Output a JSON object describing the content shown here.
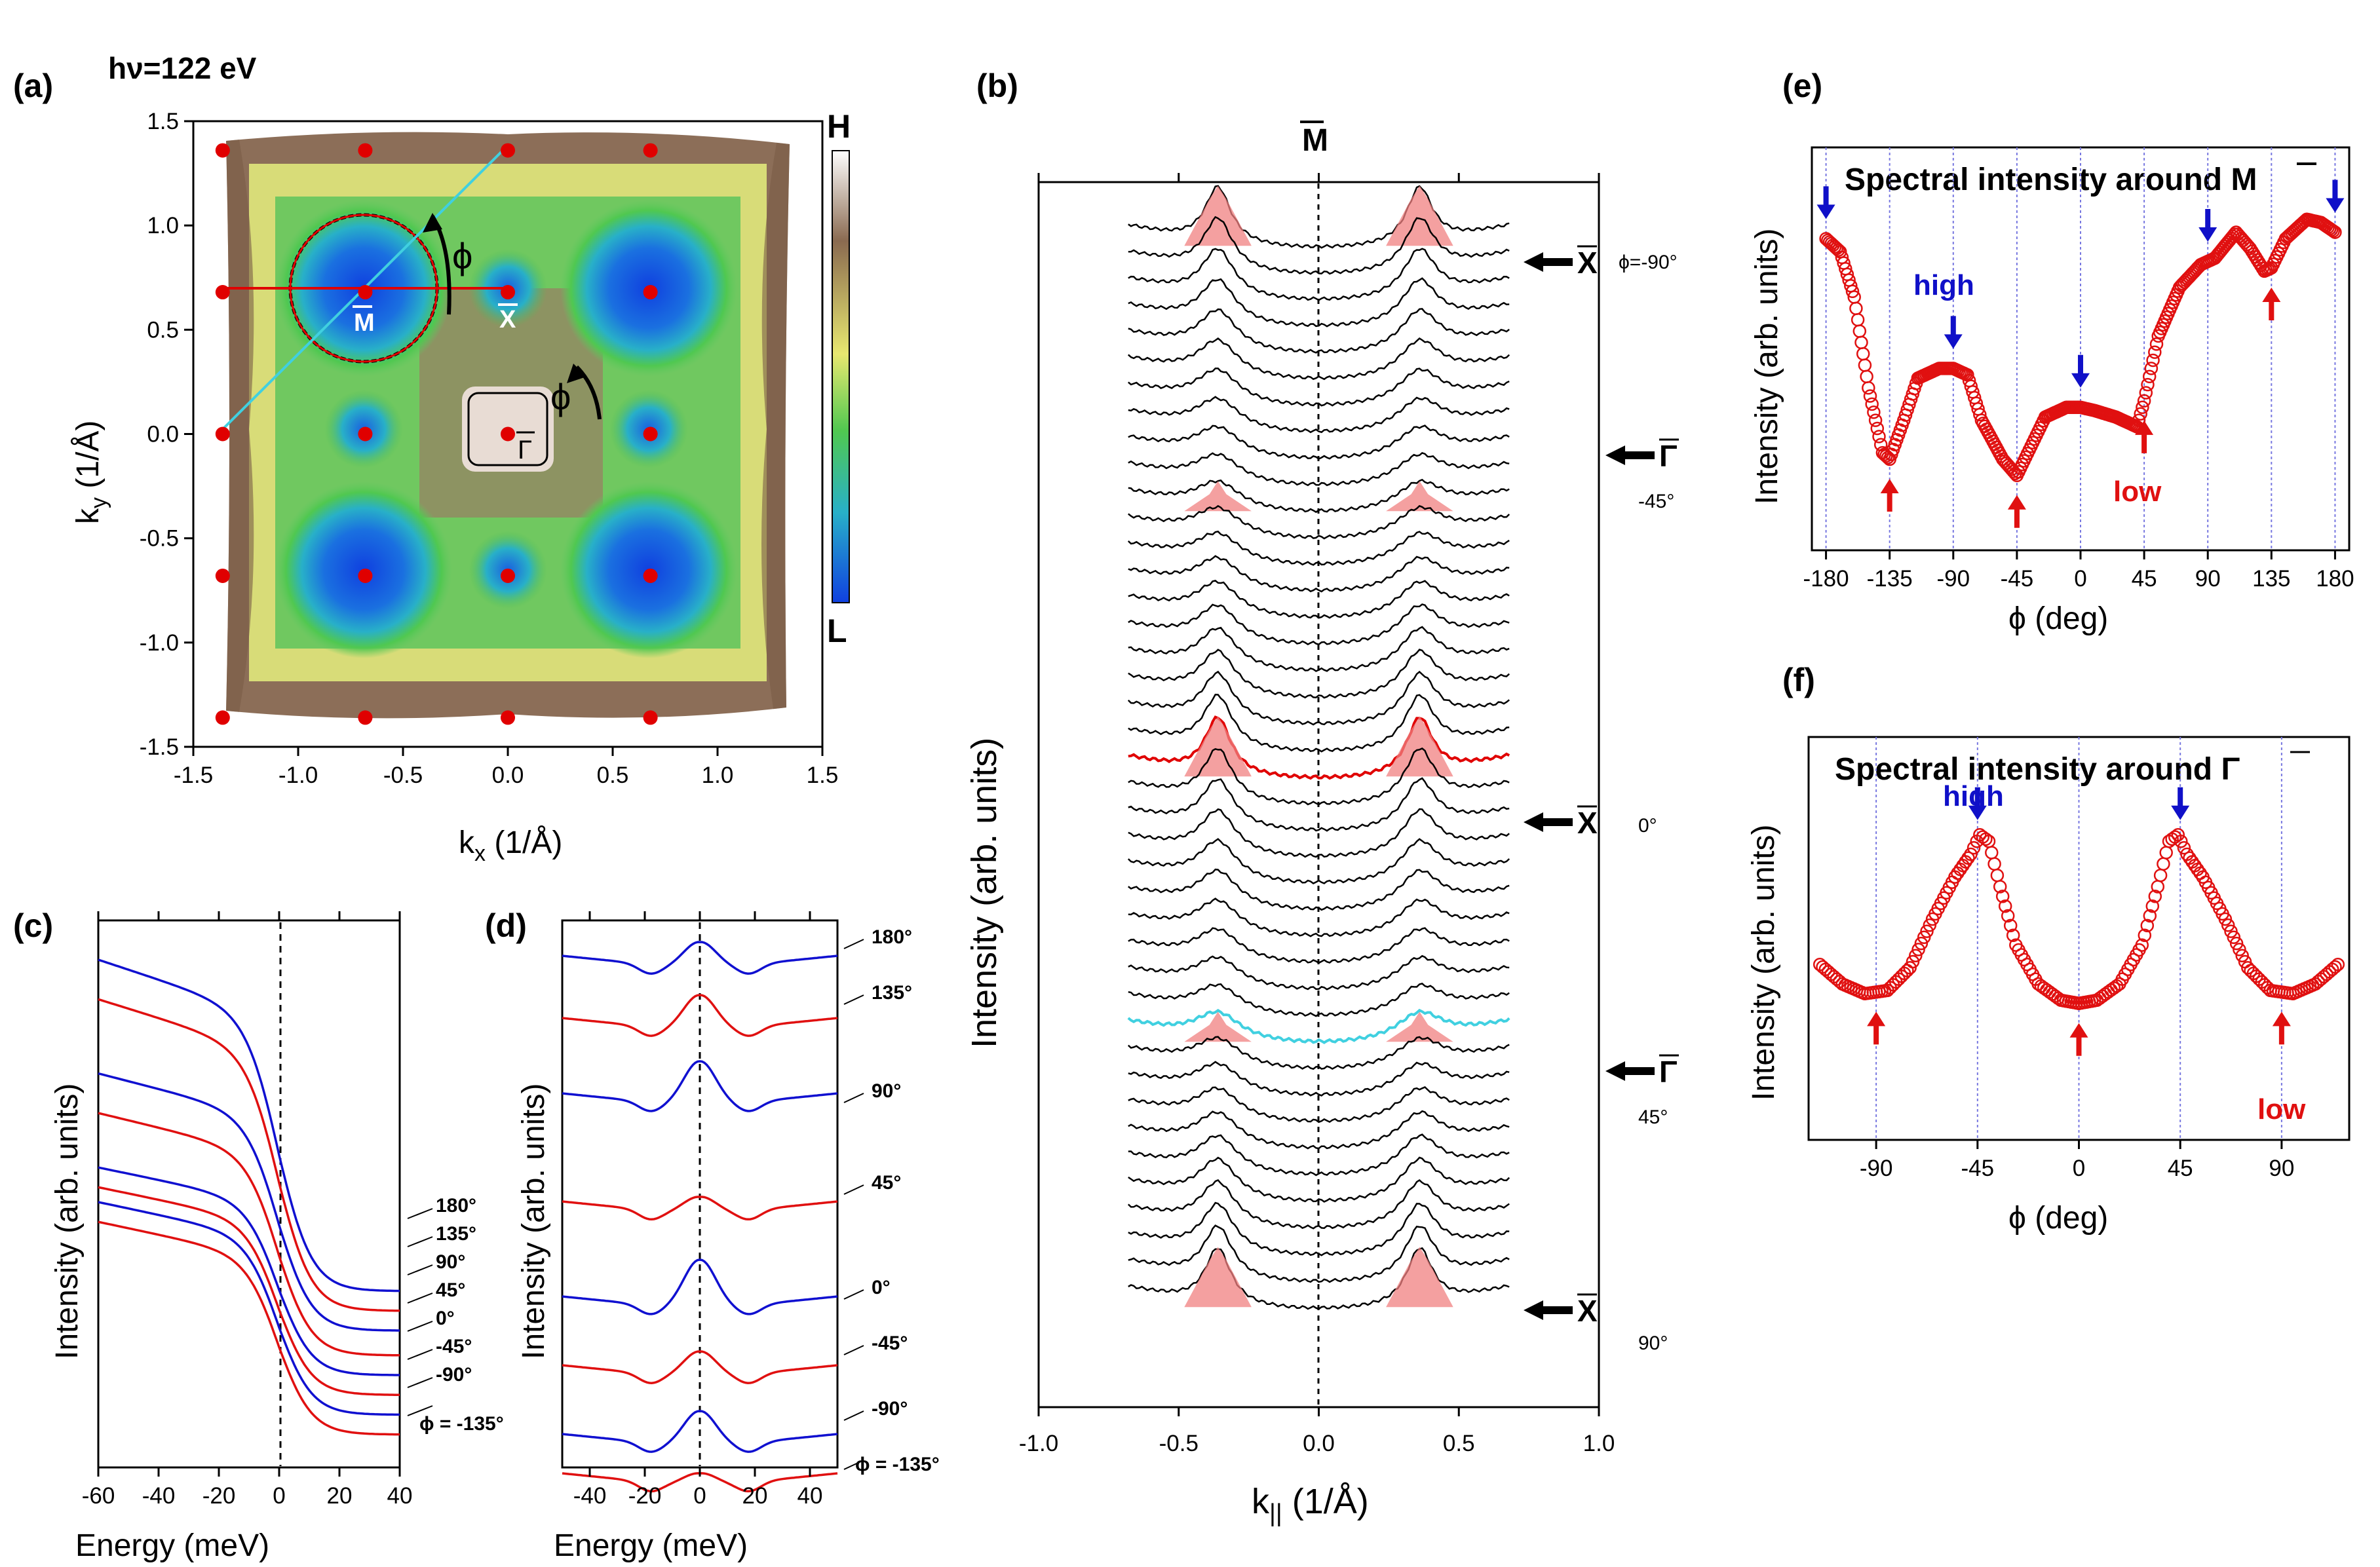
{
  "figure": {
    "panels": [
      "(a)",
      "(b)",
      "(c)",
      "(d)",
      "(e)",
      "(f)"
    ],
    "panel_a": {
      "photon_energy": "hν=122 eV",
      "colorbar_high": "H",
      "colorbar_low": "L",
      "point_labels": {
        "m": "M",
        "x": "X",
        "gamma": "Γ"
      },
      "angle_symbol": "ϕ",
      "xlabel_main": "k",
      "xlabel_sub": "x",
      "xlabel_unit": " (1/Å)",
      "ylabel_main": "k",
      "ylabel_sub": "y",
      "ylabel_unit": " (1/Å)"
    },
    "panel_b": {
      "top_label": "M",
      "ylabel": "Intensity (arb. units)",
      "xlabel_main": "k",
      "xlabel_sub": "||",
      "xlabel_unit": " (1/Å)",
      "angle_labels": [
        "ϕ=-90°",
        "-45°",
        "0°",
        "45°",
        "90°"
      ],
      "arrow_labels": [
        "X",
        "Γ",
        "X",
        "Γ",
        "X"
      ]
    },
    "panel_c": {
      "xlabel": "Energy (meV)",
      "ylabel": "Intensity (arb. units)",
      "curve_labels": [
        "180°",
        "135°",
        "90°",
        "45°",
        "0°",
        "-45°",
        "-90°",
        "ϕ = -135°"
      ]
    },
    "panel_d": {
      "xlabel": "Energy (meV)",
      "ylabel": "Intensity (arb. units)",
      "curve_labels": [
        "180°",
        "135°",
        "90°",
        "45°",
        "0°",
        "-45°",
        "-90°",
        "ϕ = -135°"
      ]
    },
    "panel_e": {
      "title_prefix": "Spectral intensity around ",
      "title_point": "M",
      "high_label": "high",
      "low_label": "low",
      "xlabel": "ϕ  (deg)",
      "ylabel": "Intensity (arb. units)"
    },
    "panel_f": {
      "title_prefix": "Spectral intensity around ",
      "title_point": "Γ",
      "high_label": "high",
      "low_label": "low",
      "xlabel": "ϕ  (deg)",
      "ylabel": "Intensity (arb. units)"
    }
  },
  "chart_data": [
    {
      "id": "a",
      "type": "heatmap",
      "title": "hν=122 eV",
      "xlabel": "kx (1/Å)",
      "ylabel": "ky (1/Å)",
      "xlim": [
        -1.5,
        1.5
      ],
      "ylim": [
        -1.5,
        1.5
      ],
      "xticks": [
        -1.5,
        -1.0,
        -0.5,
        0.0,
        0.5,
        1.0,
        1.5
      ],
      "yticks": [
        -1.5,
        -1.0,
        -0.5,
        0.0,
        0.5,
        1.0,
        1.5
      ],
      "xtick_labels": [
        "-1.5",
        "-1.0",
        "-0.5",
        "0.0",
        "0.5",
        "1.0",
        "1.5"
      ],
      "ytick_labels": [
        "-1.5",
        "-1.0",
        "-0.5",
        "0.0",
        "0.5",
        "1.0",
        "1.5"
      ],
      "lattice_points": [
        [
          -1.36,
          1.36
        ],
        [
          -0.68,
          1.36
        ],
        [
          0,
          1.36
        ],
        [
          0.68,
          1.36
        ],
        [
          -1.36,
          0.68
        ],
        [
          -0.68,
          0.68
        ],
        [
          0,
          0.68
        ],
        [
          0.68,
          0.68
        ],
        [
          -1.36,
          0
        ],
        [
          -0.68,
          0
        ],
        [
          0,
          0
        ],
        [
          0.68,
          0
        ],
        [
          -1.36,
          -0.68
        ],
        [
          -0.68,
          -0.68
        ],
        [
          0,
          -0.68
        ],
        [
          0.68,
          -0.68
        ],
        [
          -1.36,
          -1.36
        ],
        [
          -0.68,
          -1.36
        ],
        [
          0,
          -1.36
        ],
        [
          0.68,
          -1.36
        ]
      ],
      "cut_lines": [
        {
          "color": "#e00000",
          "from": [
            -1.36,
            0.68
          ],
          "to": [
            0,
            0.68
          ]
        },
        {
          "color": "#40d0e0",
          "from": [
            -1.36,
            0
          ],
          "to": [
            0,
            1.36
          ]
        }
      ],
      "colorbar": {
        "high": "H",
        "low": "L"
      }
    },
    {
      "id": "b",
      "type": "line",
      "xlabel": "k|| (1/Å)",
      "ylabel": "Intensity (arb. units)",
      "xlim": [
        -1.0,
        1.0
      ],
      "xticks": [
        -1.0,
        -0.5,
        0.0,
        0.5,
        1.0
      ],
      "xtick_labels": [
        "-1.0",
        "-0.5",
        "0.0",
        "0.5",
        "1.0"
      ],
      "n_curves": 41,
      "phi_range": [
        -90,
        90
      ],
      "peak_k": [
        -0.36,
        0.36
      ],
      "highlight_curves": [
        {
          "phi": 0,
          "color": "#e00000"
        },
        {
          "phi": 45,
          "color": "#40d0e0"
        }
      ]
    },
    {
      "id": "c",
      "type": "line",
      "xlabel": "Energy (meV)",
      "ylabel": "Intensity (arb. units)",
      "xlim": [
        -60,
        40
      ],
      "xticks": [
        -60,
        -40,
        -20,
        0,
        20,
        40
      ],
      "xtick_labels": [
        "-60",
        "-40",
        "-20",
        "0",
        "20",
        "40"
      ],
      "series": [
        {
          "name": "180°",
          "color": "blue",
          "left": 1.0,
          "right": 0.33
        },
        {
          "name": "135°",
          "color": "red",
          "left": 0.92,
          "right": 0.29
        },
        {
          "name": "90°",
          "color": "blue",
          "left": 0.77,
          "right": 0.25
        },
        {
          "name": "45°",
          "color": "red",
          "left": 0.69,
          "right": 0.2
        },
        {
          "name": "0°",
          "color": "blue",
          "left": 0.58,
          "right": 0.16
        },
        {
          "name": "-45°",
          "color": "red",
          "left": 0.54,
          "right": 0.12
        },
        {
          "name": "-90°",
          "color": "blue",
          "left": 0.51,
          "right": 0.08
        },
        {
          "name": "ϕ = -135°",
          "color": "red",
          "left": 0.47,
          "right": 0.04
        }
      ]
    },
    {
      "id": "d",
      "type": "line",
      "xlabel": "Energy (meV)",
      "ylabel": "Intensity (arb. units)",
      "xlim": [
        -50,
        50
      ],
      "xticks": [
        -40,
        -20,
        0,
        20,
        40
      ],
      "xtick_labels": [
        "-40",
        "-20",
        "0",
        "20",
        "40"
      ],
      "series": [
        {
          "name": "180°",
          "color": "blue",
          "peak": 0.06
        },
        {
          "name": "135°",
          "color": "red",
          "peak": 0.08
        },
        {
          "name": "90°",
          "color": "blue",
          "peak": 0.1
        },
        {
          "name": "45°",
          "color": "red",
          "peak": 0.04
        },
        {
          "name": "0°",
          "color": "blue",
          "peak": 0.11
        },
        {
          "name": "-45°",
          "color": "red",
          "peak": 0.06
        },
        {
          "name": "-90°",
          "color": "blue",
          "peak": 0.08
        },
        {
          "name": "ϕ = -135°",
          "color": "red",
          "peak": 0.03
        }
      ]
    },
    {
      "id": "e",
      "type": "scatter",
      "title": "Spectral intensity around M",
      "xlabel": "ϕ (deg)",
      "ylabel": "Intensity (arb. units)",
      "xlim": [
        -190,
        190
      ],
      "ylim": [
        0,
        1
      ],
      "xticks": [
        -180,
        -135,
        -90,
        -45,
        0,
        45,
        90,
        135,
        180
      ],
      "xtick_labels": [
        "-180",
        "-135",
        "-90",
        "-45",
        "0",
        "45",
        "90",
        "135",
        "180"
      ],
      "x": [
        -180,
        -170,
        -160,
        -150,
        -140,
        -135,
        -125,
        -115,
        -100,
        -90,
        -80,
        -70,
        -55,
        -45,
        -35,
        -25,
        -10,
        0,
        10,
        25,
        40,
        45,
        55,
        70,
        85,
        95,
        110,
        120,
        130,
        135,
        145,
        160,
        170,
        180
      ],
      "y": [
        0.88,
        0.84,
        0.7,
        0.42,
        0.22,
        0.2,
        0.32,
        0.45,
        0.48,
        0.48,
        0.46,
        0.32,
        0.2,
        0.15,
        0.24,
        0.33,
        0.36,
        0.36,
        0.35,
        0.33,
        0.3,
        0.38,
        0.58,
        0.73,
        0.8,
        0.82,
        0.9,
        0.85,
        0.78,
        0.79,
        0.88,
        0.94,
        0.93,
        0.9
      ],
      "high_markers": [
        -180,
        -90,
        0,
        90,
        180
      ],
      "low_markers": [
        -135,
        -45,
        45,
        135
      ]
    },
    {
      "id": "f",
      "type": "scatter",
      "title": "Spectral intensity around Γ",
      "xlabel": "ϕ (deg)",
      "ylabel": "Intensity (arb. units)",
      "xlim": [
        -120,
        120
      ],
      "ylim": [
        0,
        1
      ],
      "xticks": [
        -90,
        -45,
        0,
        45,
        90
      ],
      "xtick_labels": [
        "-90",
        "-45",
        "0",
        "45",
        "90"
      ],
      "x": [
        -115,
        -105,
        -95,
        -85,
        -75,
        -65,
        -55,
        -48,
        -44,
        -40,
        -35,
        -28,
        -18,
        -8,
        0,
        8,
        18,
        28,
        35,
        40,
        44,
        48,
        55,
        65,
        75,
        85,
        95,
        105,
        115
      ],
      "y": [
        0.46,
        0.4,
        0.37,
        0.38,
        0.45,
        0.6,
        0.73,
        0.8,
        0.86,
        0.84,
        0.7,
        0.52,
        0.4,
        0.35,
        0.34,
        0.35,
        0.4,
        0.52,
        0.7,
        0.84,
        0.86,
        0.8,
        0.73,
        0.6,
        0.45,
        0.38,
        0.37,
        0.4,
        0.46
      ],
      "high_markers": [
        -45,
        45
      ],
      "low_markers": [
        -90,
        0,
        90
      ]
    }
  ]
}
